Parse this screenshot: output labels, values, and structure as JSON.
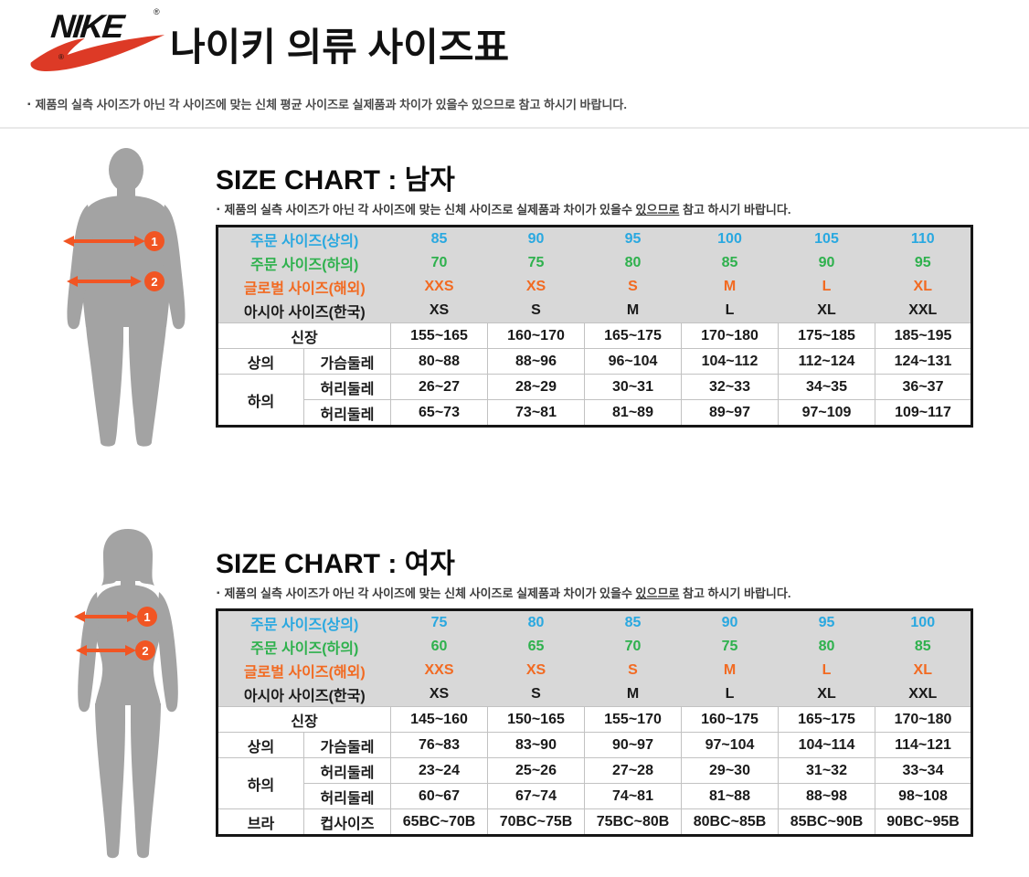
{
  "header": {
    "logo": {
      "brand": "NIKE",
      "registered": "®"
    },
    "title": "나이키 의류 사이즈표",
    "bullet": "▪",
    "note": "제품의 실측 사이즈가 아닌 각 사이즈에 맞는 신체 평균 사이즈로 실제품과 차이가 있을수 있으므로 참고 하시기 바랍니다."
  },
  "colors": {
    "blue": "#29a8e0",
    "green": "#2eb14d",
    "orange": "#f26a21",
    "black": "#1a1a1a",
    "arrow_orange": "#f15523",
    "figure_gray": "#a3a3a3",
    "header_bg": "#d8d8d8",
    "swoosh_red": "#dd3a26"
  },
  "sections": [
    {
      "id": "men",
      "title": "SIZE CHART : 남자",
      "note_pre": "제품의 실측 사이즈가 아닌 각 사이즈에 맞는 신체 사이즈로 실제품과 차이가 있을수 ",
      "note_u": "있으므로",
      "note_post": " 참고 하시기 바랍니다.",
      "figure": {
        "type": "male-silhouette",
        "markers": [
          "1",
          "2"
        ]
      },
      "table": {
        "header_rows": [
          {
            "label": "주문 사이즈(상의)",
            "color": "blue",
            "values": [
              "85",
              "90",
              "95",
              "100",
              "105",
              "110"
            ]
          },
          {
            "label": "주문 사이즈(하의)",
            "color": "green",
            "values": [
              "70",
              "75",
              "80",
              "85",
              "90",
              "95"
            ]
          },
          {
            "label": "글로벌 사이즈(해외)",
            "color": "orange",
            "values": [
              "XXS",
              "XS",
              "S",
              "M",
              "L",
              "XL"
            ]
          },
          {
            "label": "아시아 사이즈(한국)",
            "color": "black",
            "values": [
              "XS",
              "S",
              "M",
              "L",
              "XL",
              "XXL"
            ]
          }
        ],
        "body_rows": [
          {
            "labels": [
              {
                "text": "신장",
                "colspan": 2
              }
            ],
            "values": [
              "155~165",
              "160~170",
              "165~175",
              "170~180",
              "175~185",
              "185~195"
            ]
          },
          {
            "labels": [
              {
                "text": "상의"
              },
              {
                "text": "가슴둘레"
              }
            ],
            "values": [
              "80~88",
              "88~96",
              "96~104",
              "104~112",
              "112~124",
              "124~131"
            ]
          },
          {
            "labels": [
              {
                "text": "하의",
                "rowspan": 2
              },
              {
                "text": "허리둘레"
              }
            ],
            "values": [
              "26~27",
              "28~29",
              "30~31",
              "32~33",
              "34~35",
              "36~37"
            ]
          },
          {
            "labels": [
              {
                "text": "허리둘레"
              }
            ],
            "values": [
              "65~73",
              "73~81",
              "81~89",
              "89~97",
              "97~109",
              "109~117"
            ]
          }
        ]
      }
    },
    {
      "id": "women",
      "title": "SIZE CHART : 여자",
      "note_pre": "제품의 실측 사이즈가 아닌 각 사이즈에 맞는 신체 사이즈로 실제품과 차이가 있을수 ",
      "note_u": "있으므로",
      "note_post": " 참고 하시기 바랍니다.",
      "figure": {
        "type": "female-silhouette",
        "markers": [
          "1",
          "2"
        ]
      },
      "table": {
        "header_rows": [
          {
            "label": "주문 사이즈(상의)",
            "color": "blue",
            "values": [
              "75",
              "80",
              "85",
              "90",
              "95",
              "100"
            ]
          },
          {
            "label": "주문 사이즈(하의)",
            "color": "green",
            "values": [
              "60",
              "65",
              "70",
              "75",
              "80",
              "85"
            ]
          },
          {
            "label": "글로벌 사이즈(해외)",
            "color": "orange",
            "values": [
              "XXS",
              "XS",
              "S",
              "M",
              "L",
              "XL"
            ]
          },
          {
            "label": "아시아 사이즈(한국)",
            "color": "black",
            "values": [
              "XS",
              "S",
              "M",
              "L",
              "XL",
              "XXL"
            ]
          }
        ],
        "body_rows": [
          {
            "labels": [
              {
                "text": "신장",
                "colspan": 2
              }
            ],
            "values": [
              "145~160",
              "150~165",
              "155~170",
              "160~175",
              "165~175",
              "170~180"
            ]
          },
          {
            "labels": [
              {
                "text": "상의"
              },
              {
                "text": "가슴둘레"
              }
            ],
            "values": [
              "76~83",
              "83~90",
              "90~97",
              "97~104",
              "104~114",
              "114~121"
            ]
          },
          {
            "labels": [
              {
                "text": "하의",
                "rowspan": 2
              },
              {
                "text": "허리둘레"
              }
            ],
            "values": [
              "23~24",
              "25~26",
              "27~28",
              "29~30",
              "31~32",
              "33~34"
            ]
          },
          {
            "labels": [
              {
                "text": "허리둘레"
              }
            ],
            "values": [
              "60~67",
              "67~74",
              "74~81",
              "81~88",
              "88~98",
              "98~108"
            ]
          },
          {
            "labels": [
              {
                "text": "브라"
              },
              {
                "text": "컵사이즈"
              }
            ],
            "values": [
              "65BC~70B",
              "70BC~75B",
              "75BC~80B",
              "80BC~85B",
              "85BC~90B",
              "90BC~95B"
            ]
          }
        ]
      }
    }
  ]
}
